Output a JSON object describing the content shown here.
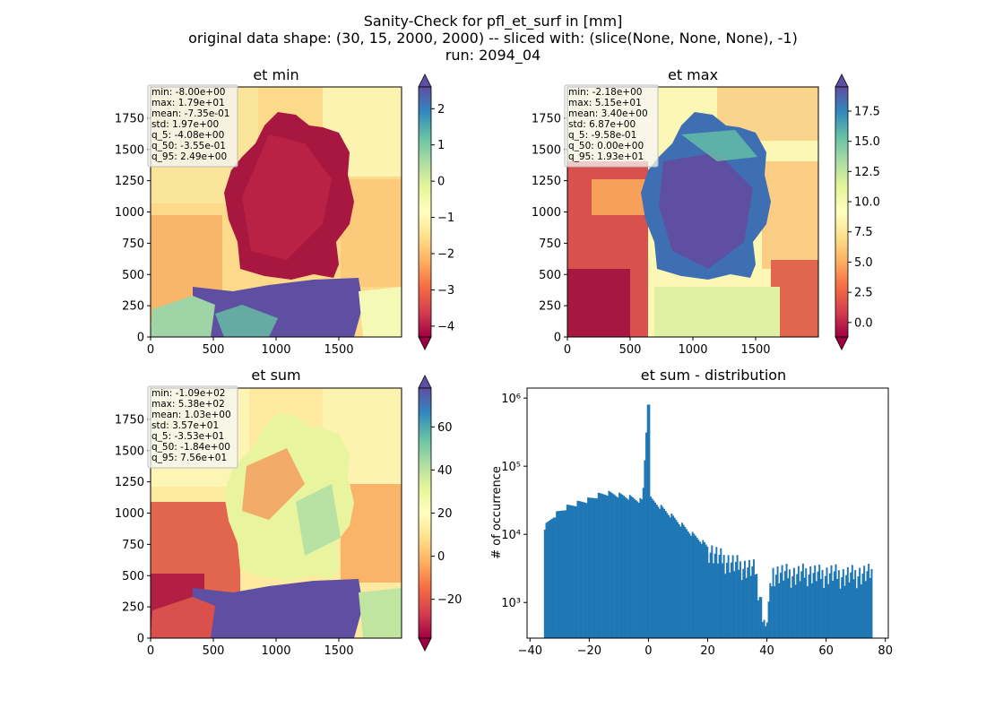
{
  "figure": {
    "suptitle": [
      "Sanity-Check for pfl_et_surf in [mm]",
      "original data shape: (30, 15, 2000, 2000) -- sliced with: (slice(None, None, None), -1)",
      "run: 2094_04"
    ]
  },
  "chart_data": [
    {
      "type": "heatmap",
      "title": "et min",
      "xlim": [
        0,
        2000
      ],
      "ylim": [
        0,
        2000
      ],
      "xticks": [
        "0",
        "500",
        "1000",
        "1500"
      ],
      "yticks": [
        "0",
        "250",
        "500",
        "750",
        "1000",
        "1250",
        "1500",
        "1750"
      ],
      "colormap": "Spectral",
      "colorbar_range": [
        -4.3,
        2.6
      ],
      "colorbar_ticks": [
        "2",
        "1",
        "0",
        "−1",
        "−2",
        "−3",
        "−4"
      ],
      "colorbar_extend": "both",
      "stats": [
        "min: -8.00e+00",
        "max: 1.79e+01",
        "mean: -7.35e-01",
        "std: 1.97e+00",
        "q_5: -4.08e+00",
        "q_50: -3.55e-01",
        "q_95: 2.49e+00"
      ]
    },
    {
      "type": "heatmap",
      "title": "et max",
      "xlim": [
        0,
        2000
      ],
      "ylim": [
        0,
        2000
      ],
      "xticks": [
        "0",
        "500",
        "1000",
        "1500"
      ],
      "yticks": [
        "0",
        "250",
        "500",
        "750",
        "1000",
        "1250",
        "1500",
        "1750"
      ],
      "colormap": "Spectral",
      "colorbar_range": [
        -1.2,
        19.5
      ],
      "colorbar_ticks": [
        "17.5",
        "15.0",
        "12.5",
        "10.0",
        "7.5",
        "5.0",
        "2.5",
        "0.0"
      ],
      "colorbar_extend": "both",
      "stats": [
        "min: -2.18e+00",
        "max: 5.15e+01",
        "mean: 3.40e+00",
        "std: 6.87e+00",
        "q_5: -9.58e-01",
        "q_50: 0.00e+00",
        "q_95: 1.93e+01"
      ]
    },
    {
      "type": "heatmap",
      "title": "et sum",
      "xlim": [
        0,
        2000
      ],
      "ylim": [
        0,
        2000
      ],
      "xticks": [
        "0",
        "500",
        "1000",
        "1500"
      ],
      "yticks": [
        "0",
        "250",
        "500",
        "750",
        "1000",
        "1250",
        "1500",
        "1750"
      ],
      "colormap": "Spectral",
      "colorbar_range": [
        -38,
        78
      ],
      "colorbar_ticks": [
        "60",
        "40",
        "20",
        "0",
        "−20"
      ],
      "colorbar_extend": "both",
      "stats": [
        "min: -1.09e+02",
        "max: 5.38e+02",
        "mean: 1.03e+00",
        "std: 3.57e+01",
        "q_5: -3.53e+01",
        "q_50: -1.84e+00",
        "q_95: 7.56e+01"
      ]
    },
    {
      "type": "bar",
      "title": "et sum - distribution",
      "ylabel": "# of occurrence",
      "xlabel": "",
      "yscale": "log",
      "xlim": [
        -41,
        81
      ],
      "ylim": [
        300,
        1400000
      ],
      "xticks": [
        "−40",
        "−20",
        "0",
        "20",
        "40",
        "60",
        "80"
      ],
      "yticks": [
        "10³",
        "10⁴",
        "10⁵",
        "10⁶"
      ],
      "color": "#1f77b4",
      "bin_range": [
        -35.3,
        75.6
      ],
      "bins": [
        {
          "x": -35,
          "count": 13000
        },
        {
          "x": -32,
          "count": 19000
        },
        {
          "x": -28,
          "count": 25000
        },
        {
          "x": -24,
          "count": 29000
        },
        {
          "x": -20,
          "count": 33000
        },
        {
          "x": -17,
          "count": 38000
        },
        {
          "x": -14,
          "count": 41000
        },
        {
          "x": -11,
          "count": 39000
        },
        {
          "x": -8,
          "count": 37000
        },
        {
          "x": -5,
          "count": 34000
        },
        {
          "x": -2,
          "count": 31000
        },
        {
          "x": -0.3,
          "count": 800000
        },
        {
          "x": 0.5,
          "count": 34000
        },
        {
          "x": 3,
          "count": 28000
        },
        {
          "x": 6,
          "count": 22000
        },
        {
          "x": 9,
          "count": 17000
        },
        {
          "x": 12,
          "count": 13000
        },
        {
          "x": 15,
          "count": 10000
        },
        {
          "x": 18,
          "count": 8000
        },
        {
          "x": 21,
          "count": 6000
        },
        {
          "x": 24,
          "count": 4800
        },
        {
          "x": 28,
          "count": 4000
        },
        {
          "x": 32,
          "count": 3500
        },
        {
          "x": 36,
          "count": 3200
        },
        {
          "x": 39.5,
          "count": 450
        },
        {
          "x": 42,
          "count": 2900
        },
        {
          "x": 46,
          "count": 2800
        },
        {
          "x": 50,
          "count": 2700
        },
        {
          "x": 54,
          "count": 2900
        },
        {
          "x": 58,
          "count": 2700
        },
        {
          "x": 62,
          "count": 2800
        },
        {
          "x": 66,
          "count": 2600
        },
        {
          "x": 70,
          "count": 2700
        },
        {
          "x": 75,
          "count": 2800
        }
      ]
    }
  ]
}
